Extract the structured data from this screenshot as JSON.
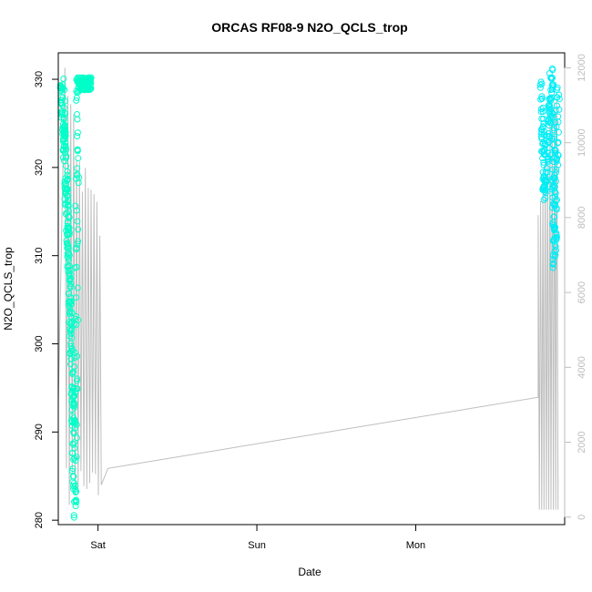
{
  "chart_data": {
    "type": "scatter",
    "title": "ORCAS RF08-9 N2O_QCLS_trop",
    "xlabel": "Date",
    "ylabel": "N2O_QCLS_trop",
    "x_ticks": [
      "Sat",
      "Sun",
      "Mon"
    ],
    "y_left_ticks": [
      "280",
      "290",
      "300",
      "310",
      "320",
      "330"
    ],
    "y_right_ticks": [
      "0",
      "2000",
      "4000",
      "6000",
      "8000",
      "10000",
      "12000"
    ],
    "ylim_left": [
      279.5,
      333
    ],
    "ylim_right": [
      -200,
      12400
    ],
    "grid": false,
    "colors": {
      "points_flight1": "#00FFC8",
      "points_flight2": "#00EDF5",
      "altitude_line": "#BEBEBE",
      "axes": "#000000",
      "right_axis": "#BEBEBE"
    },
    "series": [
      {
        "role": "points",
        "values_summary": [
          {
            "x": "Fri 18:30",
            "y": 330
          },
          {
            "x": "Fri 19:00",
            "y": 322
          },
          {
            "x": "Fri 19:30",
            "y": 312
          },
          {
            "x": "Fri 20:00",
            "y": 300
          },
          {
            "x": "Fri 20:30",
            "y": 281
          },
          {
            "x": "Fri 21:00",
            "y": 329.5
          },
          {
            "x": "Fri 23:00",
            "y": 329.5
          },
          {
            "x": "Mon 19:00",
            "y": 329.5
          },
          {
            "x": "Mon 19:30",
            "y": 317
          },
          {
            "x": "Mon 20:30",
            "y": 330
          },
          {
            "x": "Mon 21:00",
            "y": 310
          },
          {
            "x": "Mon 21:30",
            "y": 329.5
          }
        ]
      },
      {
        "role": "line",
        "axis": "right",
        "values_summary": [
          {
            "x": "Fri 18:00",
            "y": 3000
          },
          {
            "x": "Fri 19:00",
            "y": 12000
          },
          {
            "x": "Fri 20:30",
            "y": 200
          },
          {
            "x": "Sat 00:30",
            "y": 8000
          },
          {
            "x": "Sat 01:30",
            "y": 1300
          },
          {
            "x": "Mon 18:30",
            "y": 3200
          },
          {
            "x": "Mon 19:30",
            "y": 8500
          },
          {
            "x": "Mon 20:30",
            "y": 12000
          },
          {
            "x": "Mon 21:30",
            "y": 1100
          }
        ]
      }
    ]
  }
}
